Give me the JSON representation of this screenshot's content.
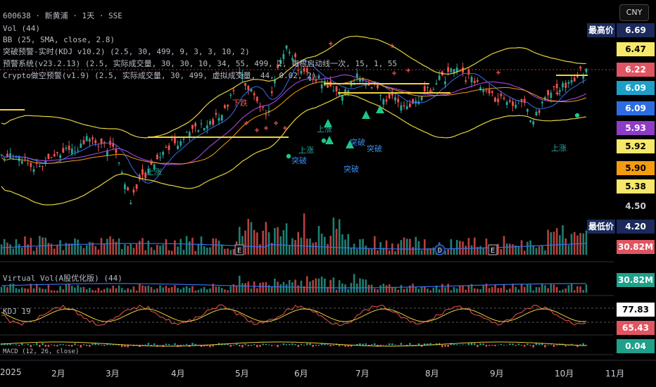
{
  "header": {
    "symbol_line": "600638 · 新黄浦 · 1天 · SSE",
    "indicators": [
      "Vol (44)",
      "BB (25, SMA, close, 2.8)",
      "突破预警-实时(KDJ v10.2) (2.5, 30, 499, 9, 3, 3, 10, 2)",
      "预警系统(v23.2.13) (2.5, 实际成交量, 30, 30, 10, 34, 55, 499, 2, 每根启动线一次, 15, 1, 55",
      "Crypto做空预警(v1.9) (2.5, 实际成交量, 30, 499, 虚拟成交量, 44, 0.02, 2)"
    ]
  },
  "currency_button": "CNY",
  "price_scale": {
    "badges": [
      {
        "text": "最高价",
        "value": "6.69",
        "bg": "#1b2a5a",
        "fg": "#ffffff"
      },
      {
        "text": "",
        "value": "6.47",
        "bg": "#f7e86b",
        "fg": "#000000"
      },
      {
        "text": "",
        "value": "6.22",
        "bg": "#e05561",
        "fg": "#ffffff"
      },
      {
        "text": "",
        "value": "6.09",
        "bg": "#1e9fc7",
        "fg": "#ffffff"
      },
      {
        "text": "",
        "value": "6.09",
        "bg": "#2e6de0",
        "fg": "#ffffff"
      },
      {
        "text": "",
        "value": "5.93",
        "bg": "#8e3cc8",
        "fg": "#ffffff"
      },
      {
        "text": "",
        "value": "5.92",
        "bg": "#f7e86b",
        "fg": "#000000"
      },
      {
        "text": "",
        "value": "5.90",
        "bg": "#f39c12",
        "fg": "#000000"
      },
      {
        "text": "",
        "value": "5.38",
        "bg": "#f7e86b",
        "fg": "#000000"
      },
      {
        "text": "",
        "value": "4.50",
        "bg": "#000000",
        "fg": "#c9ccd2"
      },
      {
        "text": "最低价",
        "value": "4.20",
        "bg": "#1b2a5a",
        "fg": "#ffffff"
      },
      {
        "text": "",
        "value": "30.82M",
        "bg": "#e05561",
        "fg": "#ffffff"
      }
    ]
  },
  "panes": {
    "virtual_vol": {
      "label": "Virtual Vol(A股优化版) (44)",
      "badge": "30.82M",
      "badge_bg": "#1fa08a"
    },
    "kdj": {
      "label": "KDJ 19",
      "badges": [
        {
          "value": "77.83",
          "bg": "#ffffff",
          "fg": "#000000"
        },
        {
          "value": "65.43",
          "bg": "#e05561",
          "fg": "#ffffff"
        }
      ]
    },
    "macd": {
      "label": "MACD (12, 26, close)",
      "badge": "0.04",
      "badge_bg": "#1fa08a"
    }
  },
  "signals": {
    "down": [
      "下跌"
    ],
    "up": [
      "上涨",
      "上涨",
      "上涨",
      "上涨"
    ],
    "break": [
      "突破",
      "突破",
      "突破",
      "突破"
    ]
  },
  "event_markers": [
    "E",
    "D",
    "E"
  ],
  "time_axis": [
    "2025",
    "2月",
    "3月",
    "4月",
    "5月",
    "6月",
    "7月",
    "8月",
    "9月",
    "10月",
    "11月"
  ],
  "colors": {
    "up": "#26a69a",
    "down": "#ef5350",
    "band": "#e6d03c",
    "ma_purple": "#9c3fd0",
    "ma_blue": "#3a6df0"
  }
}
